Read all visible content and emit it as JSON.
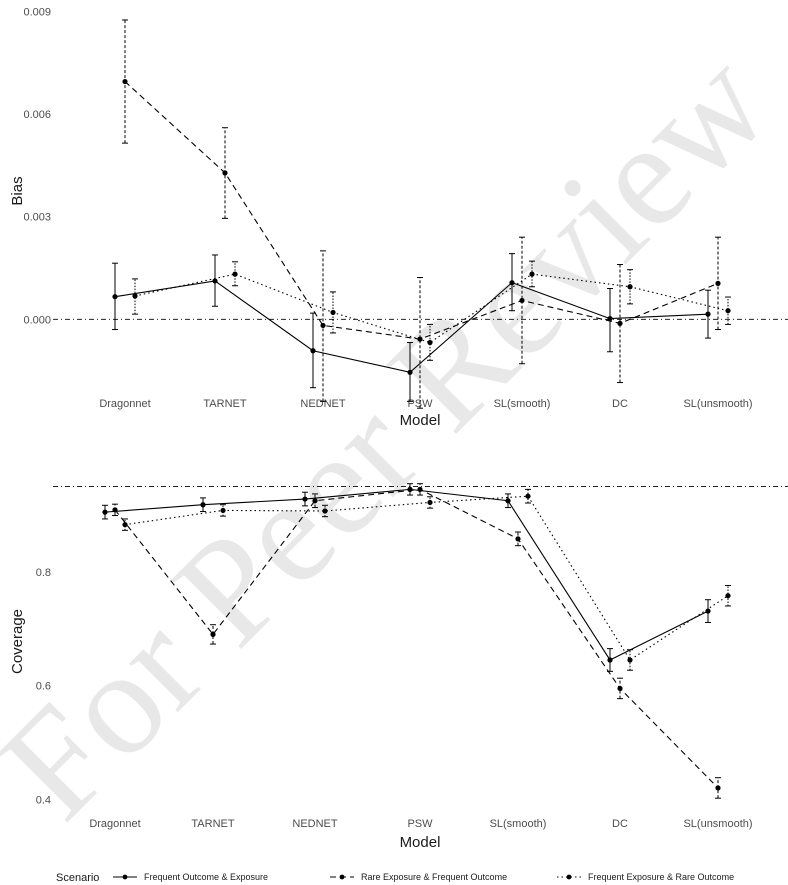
{
  "watermark": "For Peer Review",
  "legend": {
    "title": "Scenario",
    "items": [
      {
        "label": "Frequent Outcome & Exposure",
        "dash": "solid"
      },
      {
        "label": "Rare Exposure & Frequent Outcome",
        "dash": "dashed"
      },
      {
        "label": "Frequent Exposure & Rare Outcome",
        "dash": "dotted"
      }
    ]
  },
  "chart_data": [
    {
      "type": "line",
      "title": "",
      "xlabel": "Model",
      "ylabel": "Bias",
      "categories": [
        "Dragonnet",
        "TARNET",
        "NEDNET",
        "PSW",
        "SL(smooth)",
        "DC",
        "SL(unsmooth)"
      ],
      "ylim": [
        -0.0016,
        0.0091
      ],
      "yticks": [
        0.0,
        0.003,
        0.006,
        0.009
      ],
      "ytick_labels": [
        "0.000",
        "0.003",
        "0.006",
        "0.009"
      ],
      "reference_line": 0.0,
      "grid": false,
      "series": [
        {
          "name": "Frequent Outcome & Exposure",
          "dash": "solid",
          "values": [
            0.00066,
            0.00112,
            -0.00092,
            -0.00155,
            0.00107,
            2e-05,
            0.00015
          ],
          "lower": [
            -0.0003,
            0.00038,
            -0.002,
            -0.0024,
            0.00025,
            -0.00095,
            -0.00055
          ],
          "upper": [
            0.00164,
            0.00188,
            0.00018,
            -0.00068,
            0.00192,
            0.0009,
            0.00085
          ]
        },
        {
          "name": "Rare Exposure & Frequent Outcome",
          "dash": "dashed",
          "values": [
            0.00695,
            0.00428,
            -0.00018,
            -0.00058,
            0.00055,
            -0.00012,
            0.00105
          ],
          "lower": [
            0.00515,
            0.00295,
            -0.0024,
            -0.0026,
            -0.0013,
            -0.00185,
            -0.0003
          ],
          "upper": [
            0.00875,
            0.0056,
            0.002,
            0.00122,
            0.0024,
            0.0016,
            0.0024
          ]
        },
        {
          "name": "Frequent Exposure & Rare Outcome",
          "dash": "dotted",
          "values": [
            0.00068,
            0.00132,
            0.0002,
            -0.00068,
            0.00132,
            0.00095,
            0.00025
          ],
          "lower": [
            0.00015,
            0.00098,
            -0.0004,
            -0.0012,
            0.00095,
            0.00045,
            -0.00015
          ],
          "upper": [
            0.00118,
            0.00168,
            0.0008,
            -0.00015,
            0.0017,
            0.00145,
            0.00065
          ]
        }
      ]
    },
    {
      "type": "line",
      "title": "",
      "xlabel": "Model",
      "ylabel": "Coverage",
      "categories": [
        "Dragonnet",
        "TARNET",
        "NEDNET",
        "PSW",
        "SL(smooth)",
        "DC",
        "SL(unsmooth)"
      ],
      "ylim": [
        0.39,
        0.965
      ],
      "yticks": [
        0.4,
        0.6,
        0.8
      ],
      "ytick_labels": [
        "0.4",
        "0.6",
        "0.8"
      ],
      "reference_line": 0.95,
      "grid": false,
      "series": [
        {
          "name": "Frequent Outcome & Exposure",
          "dash": "solid",
          "values": [
            0.905,
            0.918,
            0.928,
            0.945,
            0.925,
            0.645,
            0.731
          ],
          "lower": [
            0.893,
            0.906,
            0.916,
            0.935,
            0.913,
            0.625,
            0.711
          ],
          "upper": [
            0.917,
            0.93,
            0.94,
            0.955,
            0.937,
            0.665,
            0.751
          ]
        },
        {
          "name": "Rare Exposure & Frequent Outcome",
          "dash": "dashed",
          "values": [
            0.909,
            0.69,
            0.925,
            0.945,
            0.858,
            0.595,
            0.42
          ],
          "lower": [
            0.899,
            0.673,
            0.913,
            0.935,
            0.846,
            0.577,
            0.402
          ],
          "upper": [
            0.919,
            0.707,
            0.937,
            0.955,
            0.87,
            0.613,
            0.438
          ]
        },
        {
          "name": "Frequent Exposure & Rare Outcome",
          "dash": "dotted",
          "values": [
            0.883,
            0.908,
            0.907,
            0.922,
            0.933,
            0.645,
            0.758
          ],
          "lower": [
            0.873,
            0.898,
            0.897,
            0.912,
            0.921,
            0.627,
            0.74
          ],
          "upper": [
            0.893,
            0.918,
            0.917,
            0.932,
            0.945,
            0.663,
            0.776
          ]
        }
      ]
    }
  ]
}
